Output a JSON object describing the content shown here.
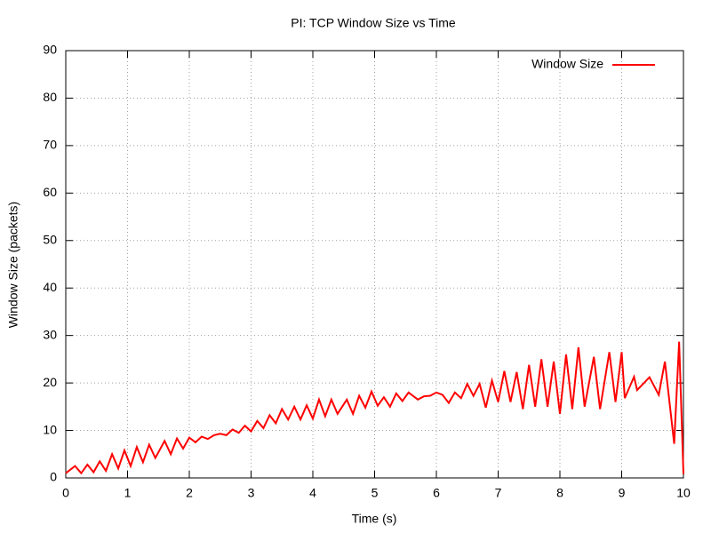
{
  "chart_data": {
    "type": "line",
    "title": "PI: TCP Window Size vs Time",
    "x_label": "Time (s)",
    "y_label": "Window Size (packets)",
    "x": [
      0.0,
      0.15,
      0.25,
      0.35,
      0.45,
      0.55,
      0.65,
      0.75,
      0.85,
      0.95,
      1.05,
      1.15,
      1.25,
      1.35,
      1.45,
      1.6,
      1.7,
      1.8,
      1.9,
      2.0,
      2.1,
      2.2,
      2.3,
      2.4,
      2.5,
      2.6,
      2.7,
      2.8,
      2.9,
      3.0,
      3.1,
      3.2,
      3.3,
      3.4,
      3.5,
      3.6,
      3.7,
      3.8,
      3.9,
      4.0,
      4.1,
      4.2,
      4.3,
      4.4,
      4.55,
      4.65,
      4.75,
      4.85,
      4.95,
      5.05,
      5.15,
      5.25,
      5.35,
      5.45,
      5.55,
      5.7,
      5.8,
      5.9,
      6.0,
      6.1,
      6.2,
      6.3,
      6.4,
      6.5,
      6.6,
      6.7,
      6.8,
      6.9,
      7.0,
      7.1,
      7.2,
      7.3,
      7.4,
      7.5,
      7.6,
      7.7,
      7.8,
      7.9,
      8.0,
      8.1,
      8.2,
      8.3,
      8.4,
      8.55,
      8.65,
      8.8,
      8.9,
      9.0,
      9.05,
      9.2,
      9.25,
      9.45,
      9.6,
      9.7,
      9.85,
      9.93,
      10.0
    ],
    "series": [
      {
        "name": "Window Size",
        "color": "#ff0000",
        "values": [
          1,
          2.5,
          1,
          2.8,
          1.2,
          3.5,
          1.5,
          5,
          2,
          5.8,
          2.5,
          6.5,
          3.3,
          7,
          4.2,
          7.8,
          5,
          8.3,
          6.2,
          8.5,
          7.5,
          8.7,
          8.2,
          9,
          9.3,
          9,
          10.2,
          9.5,
          11,
          9.8,
          12,
          10.5,
          13.2,
          11.5,
          14.5,
          12.3,
          15,
          12.3,
          15.3,
          12.5,
          16.5,
          13,
          16.5,
          13.5,
          16.5,
          13.5,
          17.3,
          14.8,
          18.2,
          15.2,
          17,
          15,
          17.8,
          16.2,
          18,
          16.5,
          17.2,
          17.3,
          18,
          17.5,
          15.8,
          18,
          16.8,
          19.8,
          17.3,
          19.8,
          14.8,
          20.5,
          16,
          22.5,
          16,
          22.3,
          14.5,
          23.8,
          15,
          25,
          15,
          24.5,
          13.5,
          26,
          14.5,
          27.5,
          15,
          25.5,
          14.5,
          26.5,
          16,
          26.5,
          16.8,
          21.3,
          18.5,
          21.2,
          17.5,
          24.5,
          7.2,
          28.7,
          0.8
        ]
      }
    ],
    "xlim": [
      0,
      10
    ],
    "xticks": [
      0,
      1,
      2,
      3,
      4,
      5,
      6,
      7,
      8,
      9,
      10
    ],
    "ylim": [
      0,
      90
    ],
    "yticks": [
      0,
      10,
      20,
      30,
      40,
      50,
      60,
      70,
      80,
      90
    ],
    "grid": true,
    "legend_position": "top-right"
  }
}
